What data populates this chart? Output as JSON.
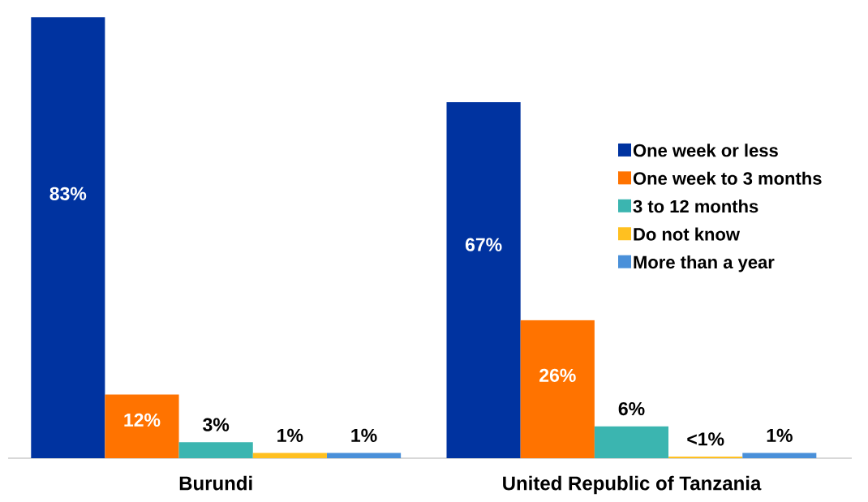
{
  "chart_data": {
    "type": "bar",
    "categories": [
      "Burundi",
      "United Republic of Tanzania"
    ],
    "series": [
      {
        "name": "One week or less",
        "color": "#0033a0",
        "values": [
          83,
          67
        ],
        "value_labels": [
          "83%",
          "67%"
        ]
      },
      {
        "name": "One week to 3 months",
        "color": "#ff7300",
        "values": [
          12,
          26
        ],
        "value_labels": [
          "12%",
          "26%"
        ]
      },
      {
        "name": "3 to 12 months",
        "color": "#3bb5b0",
        "values": [
          3,
          6
        ],
        "value_labels": [
          "3%",
          "6%"
        ]
      },
      {
        "name": "Do not know",
        "color": "#ffc020",
        "values": [
          1,
          0.3
        ],
        "value_labels": [
          "1%",
          "<1%"
        ]
      },
      {
        "name": "More than a year",
        "color": "#4a90d9",
        "values": [
          1,
          1
        ],
        "value_labels": [
          "1%",
          "1%"
        ]
      }
    ],
    "legend": "right"
  }
}
